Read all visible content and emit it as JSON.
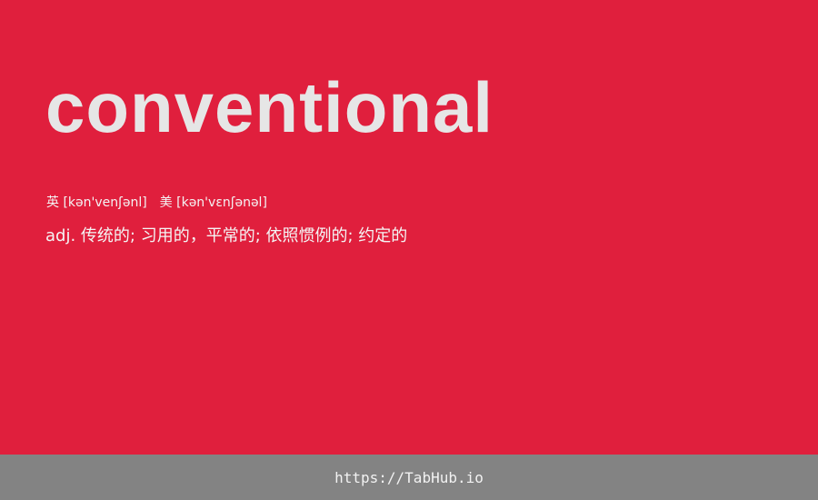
{
  "word": "conventional",
  "phonetics": {
    "uk_label": "英",
    "uk_ipa": "[kən'venʃənl]",
    "us_label": "美",
    "us_ipa": "[kən'vɛnʃənəl]"
  },
  "definition": {
    "pos": "adj.",
    "meaning": "传统的; 习用的，平常的; 依照惯例的; 约定的"
  },
  "footer": {
    "link_text": "https://TabHub.io"
  },
  "colors": {
    "background": "#e01f3d",
    "footer_background": "#838383",
    "word_text": "#e6e6e6"
  }
}
